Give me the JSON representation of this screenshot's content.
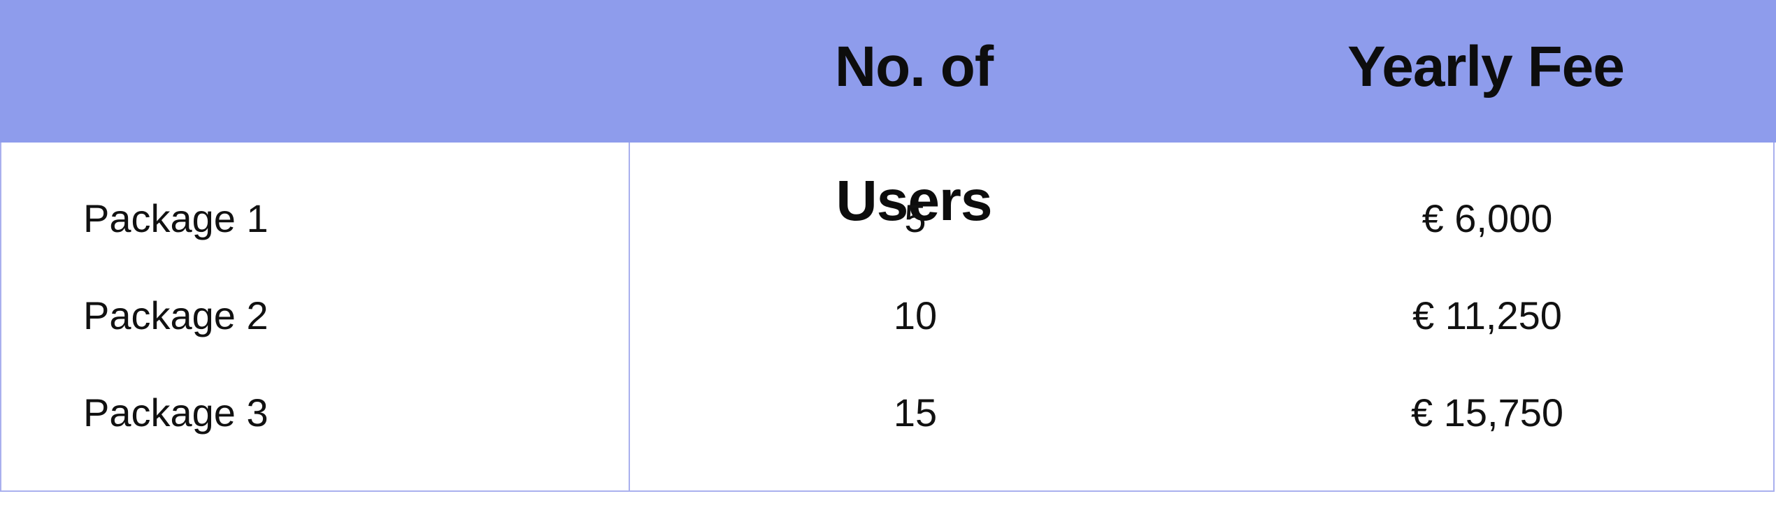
{
  "table": {
    "headers": {
      "package": "",
      "users": "No. of Users",
      "fee": "Yearly Fee"
    },
    "rows": [
      {
        "package": "Package 1",
        "users": "5",
        "fee": "€ 6,000"
      },
      {
        "package": "Package 2",
        "users": "10",
        "fee": "€ 11,250"
      },
      {
        "package": "Package 3",
        "users": "15",
        "fee": "€ 15,750"
      }
    ]
  },
  "colors": {
    "header_background": "#8e9cec",
    "border": "#a9b0ee",
    "text": "#111111"
  }
}
